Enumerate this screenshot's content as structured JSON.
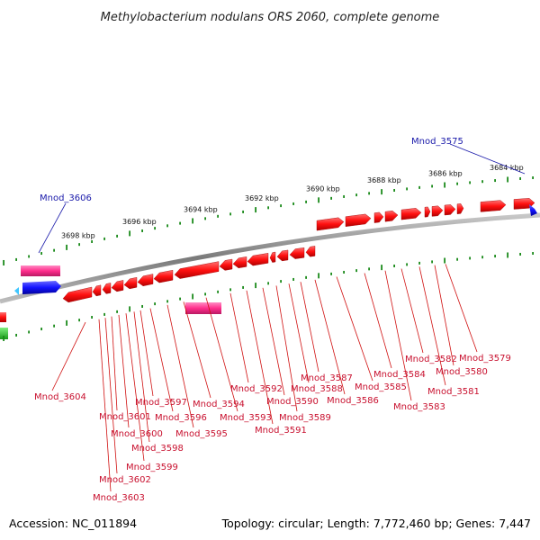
{
  "title": "Methylobacterium nodulans ORS 2060, complete genome",
  "footer": {
    "accession": "Accession: NC_011894",
    "summary": "Topology: circular; Length: 7,772,460 bp; Genes: 7,447"
  },
  "scale_labels": [
    "3698 kbp",
    "3696 kbp",
    "3694 kbp",
    "3692 kbp",
    "3690 kbp",
    "3688 kbp",
    "3686 kbp",
    "3684 kbp"
  ],
  "labels_blue": [
    "Mnod_3606",
    "Mnod_3575"
  ],
  "labels_red": [
    "Mnod_3604",
    "Mnod_3603",
    "Mnod_3602",
    "Mnod_3601",
    "Mnod_3600",
    "Mnod_3599",
    "Mnod_3598",
    "Mnod_3597",
    "Mnod_3596",
    "Mnod_3595",
    "Mnod_3594",
    "Mnod_3593",
    "Mnod_3592",
    "Mnod_3591",
    "Mnod_3590",
    "Mnod_3589",
    "Mnod_3588",
    "Mnod_3587",
    "Mnod_3586",
    "Mnod_3585",
    "Mnod_3584",
    "Mnod_3583",
    "Mnod_3582",
    "Mnod_3581",
    "Mnod_3580",
    "Mnod_3579"
  ],
  "colors": {
    "forward_gene": "#ff0000",
    "reverse_gene": "#ff0000",
    "pink_feature": "#ff2d8c",
    "blue_feature": "#1414ff",
    "cyan_feature": "#3fc6ff",
    "green_feature": "#2ecc2e",
    "backbone": "#8a8a8a",
    "tick": "#1a8a1a",
    "label_red": "#c8102e",
    "label_blue": "#1a1aaa"
  }
}
